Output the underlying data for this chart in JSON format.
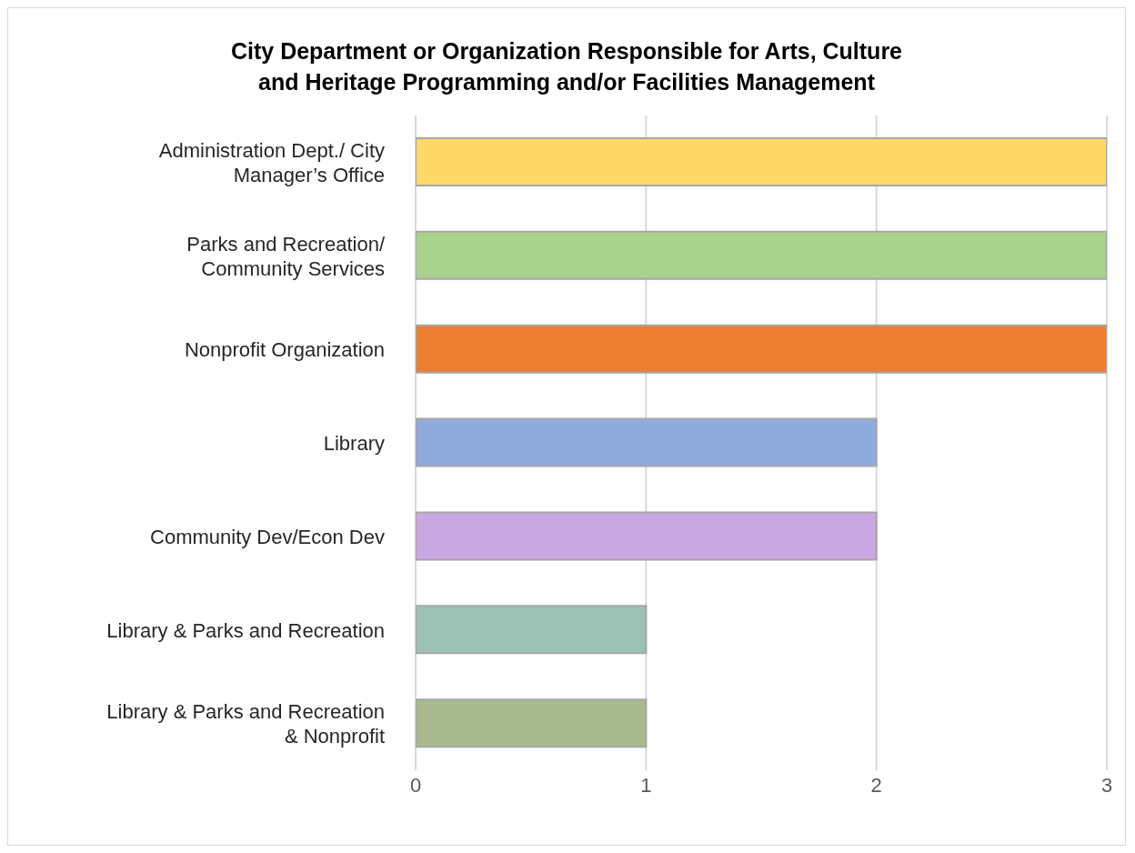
{
  "chart_data": {
    "type": "bar",
    "orientation": "horizontal",
    "title": "City Department or Organization Responsible for Arts, Culture and Heritage Programming and/or Facilities Management",
    "categories": [
      "Administration Dept./ City Manager’s Office",
      "Parks and Recreation/ Community Services",
      "Nonprofit Organization",
      "Library",
      "Community Dev/Econ Dev",
      "Library & Parks and Recreation",
      "Library & Parks and Recreation & Nonprofit"
    ],
    "values": [
      3,
      3,
      3,
      2,
      2,
      1,
      1
    ],
    "colors": [
      "#ffd966",
      "#a9d18e",
      "#ed7d31",
      "#8faadc",
      "#c9a7e3",
      "#9dc0b4",
      "#a8b98e"
    ],
    "xlim": [
      0,
      3
    ],
    "xticks": [
      0,
      1,
      2,
      3
    ],
    "grid": "x",
    "legend": false
  }
}
